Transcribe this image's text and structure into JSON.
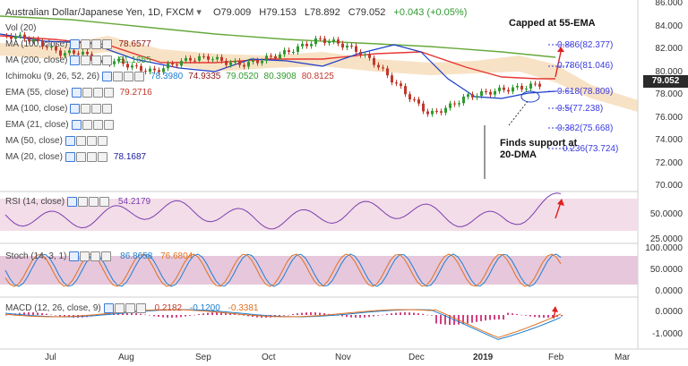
{
  "header": {
    "title": "Australian Dollar/Japanese Yen, 1D, FXCM",
    "open": "O79.009",
    "high": "H79.153",
    "low": "L78.892",
    "close": "C79.052",
    "change": "+0.043 (+0.05%)"
  },
  "vol_label": "Vol (20)",
  "indicators": [
    {
      "label": "MA (100, close)",
      "value": "78.6577",
      "color": "#8b1a1a"
    },
    {
      "label": "MA (200, close)",
      "value": "81.1655",
      "color": "#2e9a2e"
    },
    {
      "label": "Ichimoku (9, 26, 52, 26)",
      "values": [
        "78.3980",
        "74.9335",
        "79.0520",
        "80.3908",
        "80.8125"
      ],
      "colors": [
        "#1e7fd0",
        "#8b1a1a",
        "#2e9a2e",
        "#2e9a2e",
        "#c0392b"
      ]
    },
    {
      "label": "EMA (55, close)",
      "value": "79.2716",
      "color": "#c0392b"
    },
    {
      "label": "MA (100, close)",
      "value": "",
      "color": "#888"
    },
    {
      "label": "EMA (21, close)",
      "value": "",
      "color": "#888"
    },
    {
      "label": "MA (50, close)",
      "value": "",
      "color": "#888"
    },
    {
      "label": "MA (20, close)",
      "value": "78.1687",
      "color": "#1a1aa0"
    }
  ],
  "price_axis": [
    "86.000",
    "84.000",
    "82.000",
    "80.000",
    "78.000",
    "76.000",
    "74.000",
    "72.000",
    "70.000"
  ],
  "last_price": "79.052",
  "fib_levels": [
    {
      "label": "0.886(82.377)"
    },
    {
      "label": "0.786(81.046)"
    },
    {
      "label": "0.618(78.809)"
    },
    {
      "label": "0.5(77.238)"
    },
    {
      "label": "0.382(75.668)"
    },
    {
      "label": "0.236(73.724)"
    }
  ],
  "annotations": {
    "capped": "Capped at 55-EMA",
    "support_line1": "Finds support at",
    "support_line2": "20-DMA"
  },
  "rsi": {
    "label": "RSI (14, close)",
    "value": "54.2179",
    "axis": [
      "50.0000",
      "25.0000"
    ]
  },
  "stoch": {
    "label": "Stoch (14, 3, 1)",
    "value1": "86.8658",
    "value2": "76.6804",
    "axis": [
      "100.0000",
      "50.0000",
      "0.0000"
    ]
  },
  "macd": {
    "label": "MACD (12, 26, close, 9)",
    "values": [
      "0.2182",
      "-0.1200",
      "-0.3381"
    ],
    "axis": [
      "0.0000",
      "-1.0000"
    ]
  },
  "time_axis": [
    "Jul",
    "Aug",
    "Sep",
    "Oct",
    "Nov",
    "Dec",
    "2019",
    "Feb",
    "Mar"
  ],
  "colors": {
    "up": "#2e9a2e",
    "down": "#c0392b",
    "ema55": "#e53935",
    "ma20": "#1a3cc8",
    "ma200": "#66a83a",
    "cloud": "#f3cf9f",
    "rsi_band": "#f3dde8",
    "stoch_band": "#e6c7dc"
  }
}
